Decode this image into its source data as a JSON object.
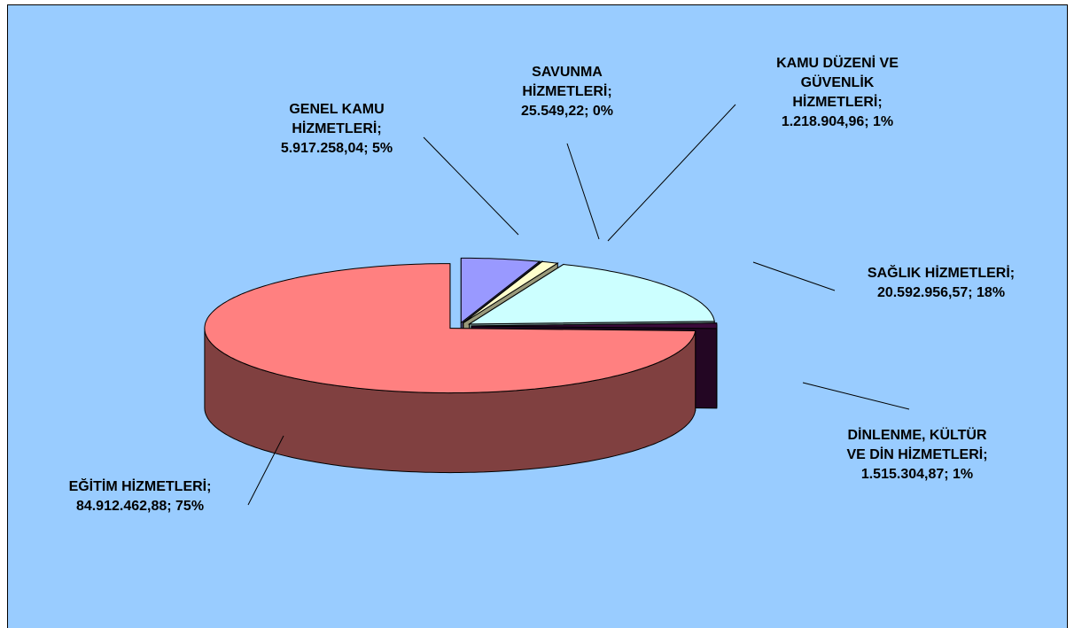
{
  "chart_data": {
    "type": "pie3d",
    "categories": [
      "GENEL KAMU HİZMETLERİ;",
      "SAVUNMA HİZMETLERİ;",
      "KAMU DÜZENİ VE GÜVENLİK HİZMETLERİ;",
      "SAĞLIK HİZMETLERİ;",
      "DİNLENME, KÜLTÜR VE DİN HİZMETLERİ;",
      "EĞİTİM HİZMETLERİ;"
    ],
    "values": [
      5917258.04,
      25549.22,
      1218904.96,
      20592956.57,
      1515304.87,
      84912462.88
    ],
    "value_labels": [
      "5.917.258,04; 5%",
      "25.549,22; 0%",
      "1.218.904,96; 1%",
      "20.592.956,57; 18%",
      "1.515.304,87; 1%",
      "84.912.462,88; 75%"
    ],
    "colors": [
      "#9999ff",
      "#993366",
      "#ffffcc",
      "#ccffff",
      "#3a0a3a",
      "#ff8080"
    ]
  }
}
